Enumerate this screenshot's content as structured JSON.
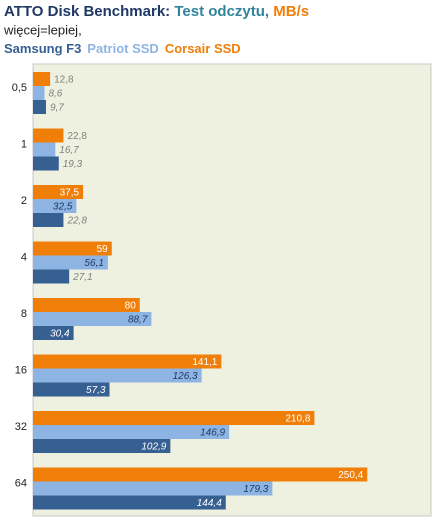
{
  "chart_data": {
    "type": "hbar",
    "title": [
      "ATTO Disk Benchmark:",
      "Test odczytu,",
      "MB/s"
    ],
    "subtitle": "więcej=lepiej,",
    "categories": [
      "0,5",
      "1",
      "2",
      "4",
      "8",
      "16",
      "32",
      "64"
    ],
    "series": [
      {
        "name": "Samsung F3",
        "color": "#366092",
        "values": [
          9.7,
          19.3,
          22.8,
          27.1,
          30.4,
          57.3,
          102.9,
          144.4
        ],
        "value_labels": [
          "9,7",
          "19,3",
          "22,8",
          "27,1",
          "30,4",
          "57,3",
          "102,9",
          "144,4"
        ]
      },
      {
        "name": "Patriot SSD",
        "color": "#8eb4e3",
        "values": [
          8.6,
          16.7,
          32.5,
          56.1,
          88.7,
          126.3,
          146.9,
          179.3
        ],
        "value_labels": [
          "8,6",
          "16,7",
          "32,5",
          "56,1",
          "88,7",
          "126,3",
          "146,9",
          "179,3"
        ]
      },
      {
        "name": "Corsair SSD",
        "color": "#f07f09",
        "values": [
          12.8,
          22.8,
          37.5,
          59,
          80,
          141.1,
          210.8,
          250.4
        ],
        "value_labels": [
          "12,8",
          "22,8",
          "37,5",
          "59",
          "80",
          "141,1",
          "210,8",
          "250,4"
        ]
      }
    ]
  }
}
